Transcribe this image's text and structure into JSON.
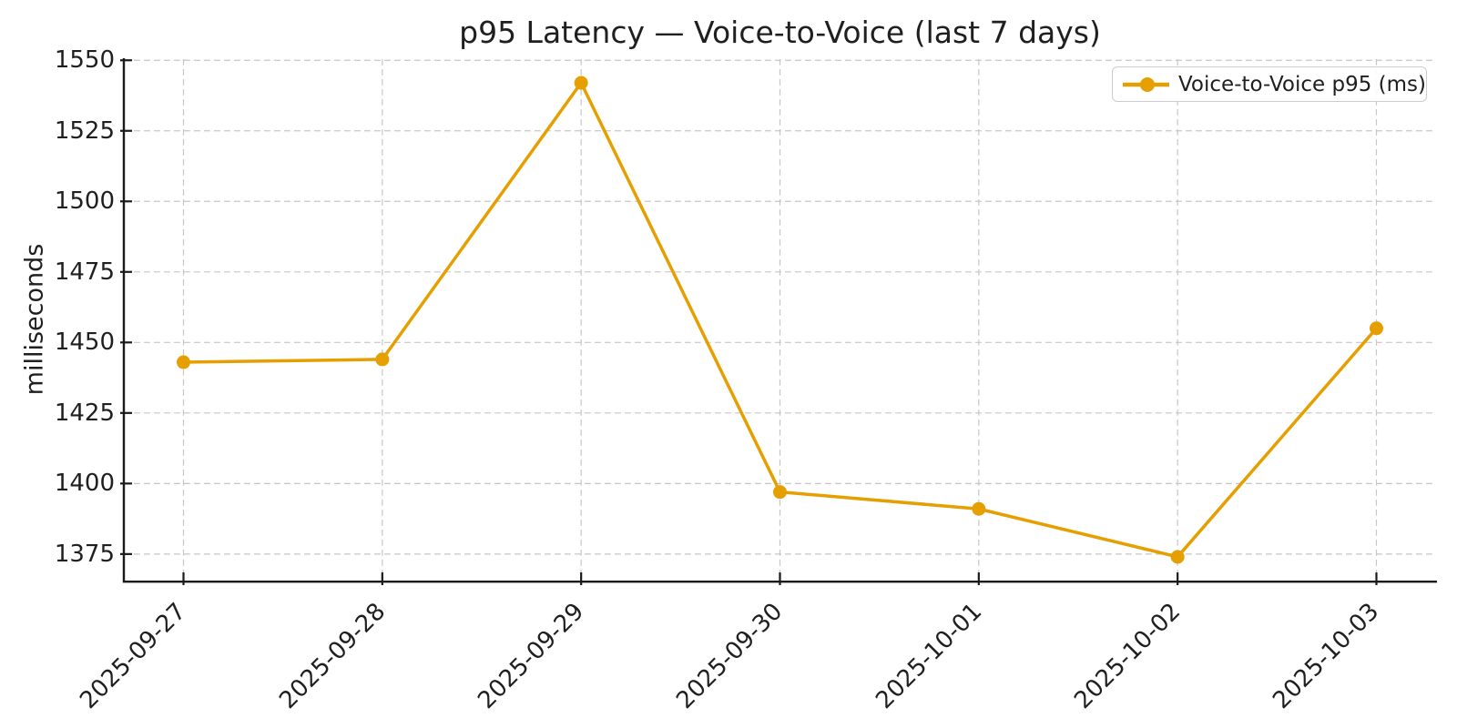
{
  "figure": {
    "background": "#ffffff",
    "text_color": "#1f1f1f",
    "grid_color": "#c6c6c6",
    "spine_color": "#1a1a1a"
  },
  "legend": {
    "label": "Voice-to-Voice p95 (ms)"
  },
  "chart_data": {
    "type": "line",
    "title": "p95 Latency — Voice-to-Voice (last 7 days)",
    "xlabel": "",
    "ylabel": "milliseconds",
    "categories": [
      "2025-09-27",
      "2025-09-28",
      "2025-09-29",
      "2025-09-30",
      "2025-10-01",
      "2025-10-02",
      "2025-10-03"
    ],
    "series": [
      {
        "name": "Voice-to-Voice p95 (ms)",
        "values": [
          1443,
          1444,
          1542,
          1397,
          1391,
          1374,
          1455
        ],
        "color": "#E69F00",
        "marker": "circle"
      }
    ],
    "yticks": [
      1375,
      1400,
      1425,
      1450,
      1475,
      1500,
      1525,
      1550
    ],
    "ylim": [
      1365.6,
      1550.4
    ],
    "x_margin": 0.3,
    "x_tick_rotation": 45,
    "grid": true,
    "grid_style": "dashed",
    "legend_position": "upper right"
  }
}
